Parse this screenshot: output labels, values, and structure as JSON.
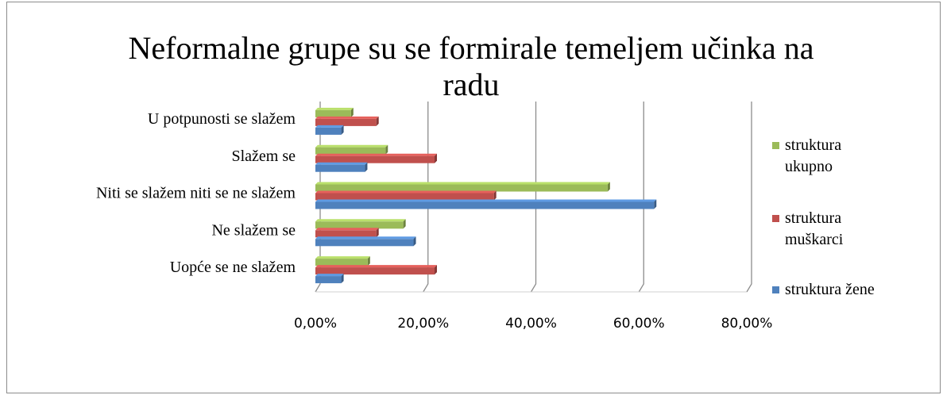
{
  "chart_data": {
    "type": "bar",
    "orientation": "horizontal",
    "title": "Neformalne grupe su se formirale temeljem učinka na radu",
    "categories": [
      "U potpunosti se slažem",
      "Slažem se",
      "Niti se slažem niti se ne slažem",
      "Ne slažem se",
      "Uopće se ne slažem"
    ],
    "series": [
      {
        "name": "struktura ukupno",
        "color": "#9bbb59",
        "values": [
          6.6,
          13.0,
          54.2,
          16.3,
          9.7
        ]
      },
      {
        "name": "struktura muškarci",
        "color": "#c0504d",
        "values": [
          11.3,
          22.1,
          33.1,
          11.3,
          22.1
        ]
      },
      {
        "name": "struktura žene",
        "color": "#4f81bd",
        "values": [
          4.8,
          9.2,
          62.8,
          18.2,
          4.8
        ]
      }
    ],
    "xlim": [
      0,
      80
    ],
    "xticks": [
      {
        "value": 0,
        "label": "0,00%"
      },
      {
        "value": 20,
        "label": "20,00%"
      },
      {
        "value": 40,
        "label": "40,00%"
      },
      {
        "value": 60,
        "label": "60,00%"
      },
      {
        "value": 80,
        "label": "80,00%"
      }
    ],
    "grid": true,
    "legend": "right"
  }
}
